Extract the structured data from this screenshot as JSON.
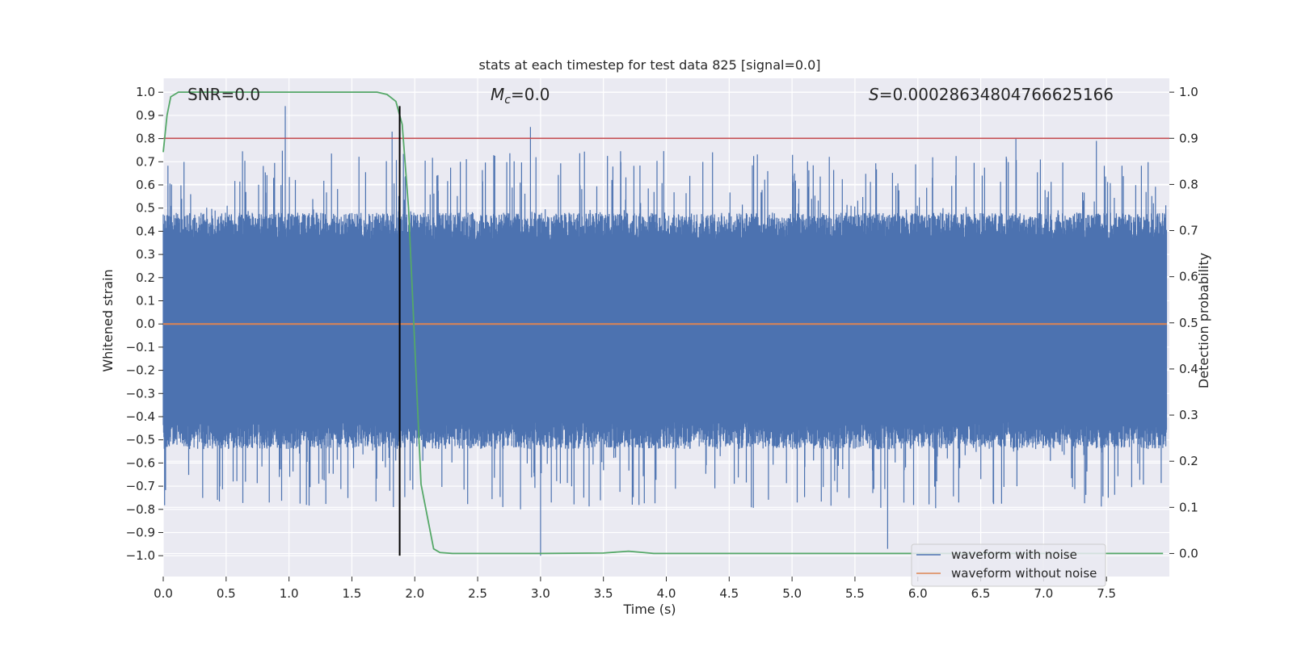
{
  "chart_data": {
    "type": "line",
    "title": "stats at each timestep for test data 825 [signal=0.0]",
    "xlabel": "Time (s)",
    "ylabel": "Whitened strain",
    "y2label": "Detection probability",
    "xlim": [
      0.0,
      8.0
    ],
    "ylim": [
      -1.09,
      1.06
    ],
    "y2lim": [
      -0.05,
      1.03
    ],
    "xticks": [
      "0.0",
      "0.5",
      "1.0",
      "1.5",
      "2.0",
      "2.5",
      "3.0",
      "3.5",
      "4.0",
      "4.5",
      "5.0",
      "5.5",
      "6.0",
      "6.5",
      "7.0",
      "7.5"
    ],
    "yticks": [
      "1.0",
      "0.9",
      "0.8",
      "0.7",
      "0.6",
      "0.5",
      "0.4",
      "0.3",
      "0.2",
      "0.1",
      "0.0",
      "-0.1",
      "-0.2",
      "-0.3",
      "-0.4",
      "-0.5",
      "-0.6",
      "-0.7",
      "-0.8",
      "-0.9",
      "-1.0"
    ],
    "y2ticks": [
      "1.0",
      "0.9",
      "0.8",
      "0.7",
      "0.6",
      "0.5",
      "0.4",
      "0.3",
      "0.2",
      "0.1",
      "0.0"
    ],
    "grid": true,
    "legend_position": "lower-right",
    "annotations": {
      "snr": "SNR=0.0",
      "mc_symbol": "M",
      "mc_sub": "c",
      "mc_value": "=0.0",
      "s_symbol": "S",
      "s_value": "=0.00028634804766625166"
    },
    "noise_envelope": {
      "upper_base": 0.36,
      "lower_base": -0.42,
      "upper_spike_max": 0.94,
      "lower_spike_min": -1.0
    },
    "series": [
      {
        "name": "waveform with noise",
        "color": "#4c72b0",
        "notable_peaks": [
          {
            "x": 0.97,
            "y": 0.94
          },
          {
            "x": 1.82,
            "y": 0.83
          },
          {
            "x": 2.92,
            "y": 0.85
          },
          {
            "x": 6.78,
            "y": 0.8
          },
          {
            "x": 7.42,
            "y": 0.79
          },
          {
            "x": 3.0,
            "y": -1.0
          },
          {
            "x": 5.76,
            "y": -0.97
          },
          {
            "x": 1.83,
            "y": -0.79
          },
          {
            "x": 2.7,
            "y": -0.79
          }
        ]
      },
      {
        "name": "waveform without noise",
        "color": "#dd8452",
        "x": [
          0.0,
          7.98
        ],
        "y": [
          0.0,
          0.0
        ]
      },
      {
        "axis": "right",
        "color": "#55a868",
        "x": [
          0.0,
          0.03,
          0.06,
          0.12,
          0.2,
          0.5,
          1.0,
          1.5,
          1.7,
          1.78,
          1.85,
          1.9,
          1.95,
          2.0,
          2.05,
          2.1,
          2.15,
          2.2,
          2.3,
          2.5,
          3.0,
          3.5,
          3.7,
          3.9,
          4.5,
          5.5,
          6.0,
          7.0,
          7.95
        ],
        "y": [
          0.87,
          0.95,
          0.99,
          1.0,
          1.0,
          1.0,
          1.0,
          1.0,
          1.0,
          0.995,
          0.98,
          0.93,
          0.75,
          0.45,
          0.15,
          0.08,
          0.01,
          0.002,
          0.0,
          0.0,
          0.0,
          0.001,
          0.005,
          0.0,
          0.0,
          0.0,
          0.0,
          0.0,
          0.0
        ]
      }
    ],
    "threshold": {
      "axis": "right",
      "y": 0.9,
      "color": "#c44e52"
    },
    "marker_line": {
      "x": 1.88,
      "y_from": -1.0,
      "y_to": 0.94,
      "color": "#000000"
    }
  }
}
